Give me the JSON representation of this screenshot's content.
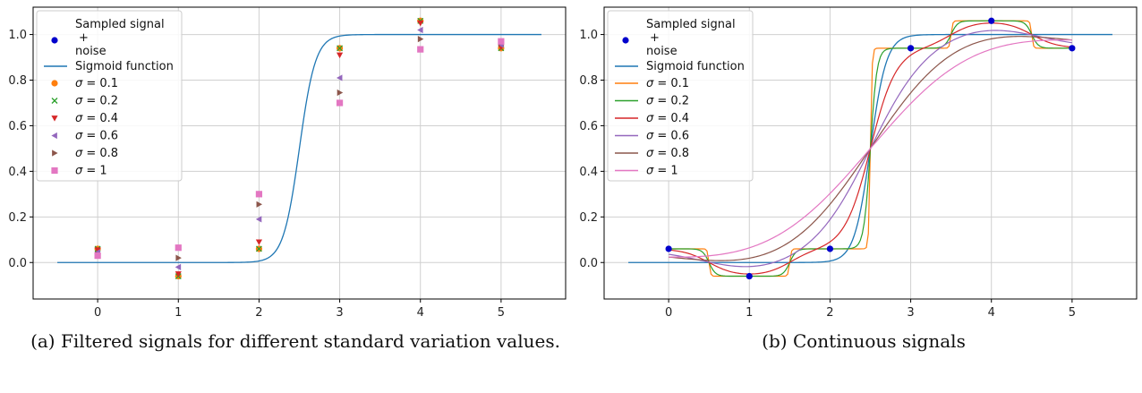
{
  "captions": {
    "a": "(a) Filtered signals for different standard variation values.",
    "b": "(b) Continuous signals"
  },
  "chart_data": [
    {
      "type": "scatter",
      "xlim": [
        -0.8,
        5.8
      ],
      "ylim": [
        -0.16,
        1.12
      ],
      "xticks": [
        0,
        1,
        2,
        3,
        4,
        5
      ],
      "yticks": [
        0.0,
        0.2,
        0.4,
        0.6,
        0.8,
        1.0
      ],
      "ytick_labels": [
        "0.0",
        "0.2",
        "0.4",
        "0.6",
        "0.8",
        "1.0"
      ],
      "grid": true,
      "legend_position": "upper-left",
      "sampled_signal": {
        "name": "Sampled signal + noise",
        "label_lines": [
          "Sampled signal",
          "+",
          "noise"
        ],
        "color": "#0000cc",
        "x": [
          0,
          1,
          2,
          3,
          4,
          5
        ],
        "y": [
          0.06,
          -0.06,
          0.06,
          0.94,
          1.06,
          0.94
        ]
      },
      "sigmoid": {
        "name": "Sigmoid function",
        "color": "#1f77b4",
        "x_range": [
          -0.5,
          5.5
        ],
        "center": 2.5,
        "steepness": 10
      },
      "series": [
        {
          "name": "σ = 0.1",
          "sigma_label": "= 0.1",
          "color": "#ff7f0e",
          "marker": "circle",
          "x": [
            0,
            1,
            2,
            3,
            4,
            5
          ],
          "y": [
            0.06,
            -0.06,
            0.06,
            0.94,
            1.06,
            0.94
          ]
        },
        {
          "name": "σ = 0.2",
          "sigma_label": "= 0.2",
          "color": "#2ca02c",
          "marker": "x",
          "x": [
            0,
            1,
            2,
            3,
            4,
            5
          ],
          "y": [
            0.06,
            -0.06,
            0.06,
            0.94,
            1.06,
            0.94
          ]
        },
        {
          "name": "σ = 0.4",
          "sigma_label": "= 0.4",
          "color": "#d62728",
          "marker": "triangle-down",
          "x": [
            0,
            1,
            2,
            3,
            4,
            5
          ],
          "y": [
            0.055,
            -0.05,
            0.09,
            0.91,
            1.05,
            0.945
          ]
        },
        {
          "name": "σ = 0.6",
          "sigma_label": "= 0.6",
          "color": "#9467bd",
          "marker": "triangle-left",
          "x": [
            0,
            1,
            2,
            3,
            4,
            5
          ],
          "y": [
            0.045,
            -0.02,
            0.19,
            0.81,
            1.02,
            0.955
          ]
        },
        {
          "name": "σ = 0.8",
          "sigma_label": "= 0.8",
          "color": "#8c564b",
          "marker": "triangle-right",
          "x": [
            0,
            1,
            2,
            3,
            4,
            5
          ],
          "y": [
            0.035,
            0.02,
            0.255,
            0.745,
            0.98,
            0.965
          ]
        },
        {
          "name": "σ = 1",
          "sigma_label": "= 1",
          "color": "#e377c2",
          "marker": "square",
          "x": [
            0,
            1,
            2,
            3,
            4,
            5
          ],
          "y": [
            0.03,
            0.065,
            0.3,
            0.7,
            0.935,
            0.97
          ]
        }
      ]
    },
    {
      "type": "line",
      "xlim": [
        -0.8,
        5.8
      ],
      "ylim": [
        -0.16,
        1.12
      ],
      "xticks": [
        0,
        1,
        2,
        3,
        4,
        5
      ],
      "yticks": [
        0.0,
        0.2,
        0.4,
        0.6,
        0.8,
        1.0
      ],
      "ytick_labels": [
        "0.0",
        "0.2",
        "0.4",
        "0.6",
        "0.8",
        "1.0"
      ],
      "grid": true,
      "legend_position": "upper-left",
      "sampled_signal": {
        "name": "Sampled signal + noise",
        "label_lines": [
          "Sampled signal",
          "+",
          "noise"
        ],
        "color": "#0000cc",
        "x": [
          0,
          1,
          2,
          3,
          4,
          5
        ],
        "y": [
          0.06,
          -0.06,
          0.06,
          0.94,
          1.06,
          0.94
        ]
      },
      "sigmoid": {
        "name": "Sigmoid function",
        "color": "#1f77b4",
        "x_range": [
          -0.5,
          5.5
        ],
        "center": 2.5,
        "steepness": 10
      },
      "series": [
        {
          "name": "σ = 0.1",
          "sigma_label": "= 0.1",
          "color": "#ff7f0e",
          "sigma": 0.1
        },
        {
          "name": "σ = 0.2",
          "sigma_label": "= 0.2",
          "color": "#2ca02c",
          "sigma": 0.2
        },
        {
          "name": "σ = 0.4",
          "sigma_label": "= 0.4",
          "color": "#d62728",
          "sigma": 0.4
        },
        {
          "name": "σ = 0.6",
          "sigma_label": "= 0.6",
          "color": "#9467bd",
          "sigma": 0.6
        },
        {
          "name": "σ = 0.8",
          "sigma_label": "= 0.8",
          "color": "#8c564b",
          "sigma": 0.8
        },
        {
          "name": "σ = 1",
          "sigma_label": "= 1",
          "color": "#e377c2",
          "sigma": 1.0
        }
      ]
    }
  ]
}
